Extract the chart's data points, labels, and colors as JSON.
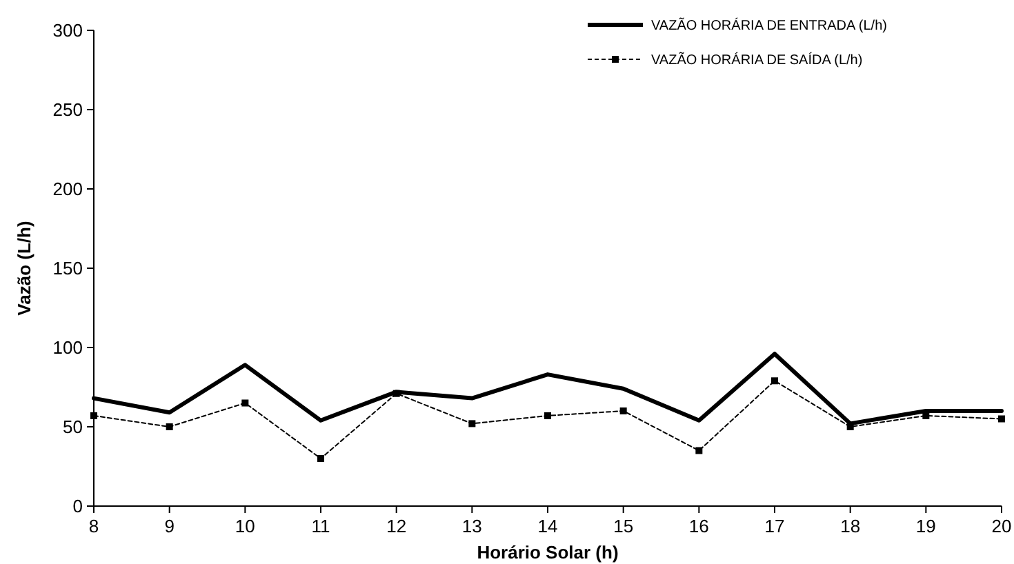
{
  "chart_data": {
    "type": "line",
    "xlabel": "Horário Solar (h)",
    "ylabel": "Vazão (L/h)",
    "x": [
      8,
      9,
      10,
      11,
      12,
      13,
      14,
      15,
      16,
      17,
      18,
      19,
      20
    ],
    "xlim": [
      8,
      20
    ],
    "xticks": [
      8,
      9,
      10,
      11,
      12,
      13,
      14,
      15,
      16,
      17,
      18,
      19,
      20
    ],
    "ylim": [
      0,
      300
    ],
    "yticks": [
      0,
      50,
      100,
      150,
      200,
      250,
      300
    ],
    "grid": false,
    "legend": "top right",
    "series": [
      {
        "name": "VAZÃO HORÁRIA DE ENTRADA (L/h)",
        "color": "#000000",
        "values": [
          68,
          59,
          89,
          54,
          72,
          68,
          83,
          74,
          54,
          96,
          52,
          60,
          60
        ],
        "line_style": "solid",
        "marker": "none"
      },
      {
        "name": "VAZÃO HORÁRIA DE SAÍDA (L/h)",
        "color": "#000000",
        "values": [
          57,
          50,
          65,
          30,
          71,
          52,
          57,
          60,
          35,
          79,
          50,
          57,
          55
        ],
        "line_style": "dashed",
        "marker": "square"
      }
    ]
  }
}
